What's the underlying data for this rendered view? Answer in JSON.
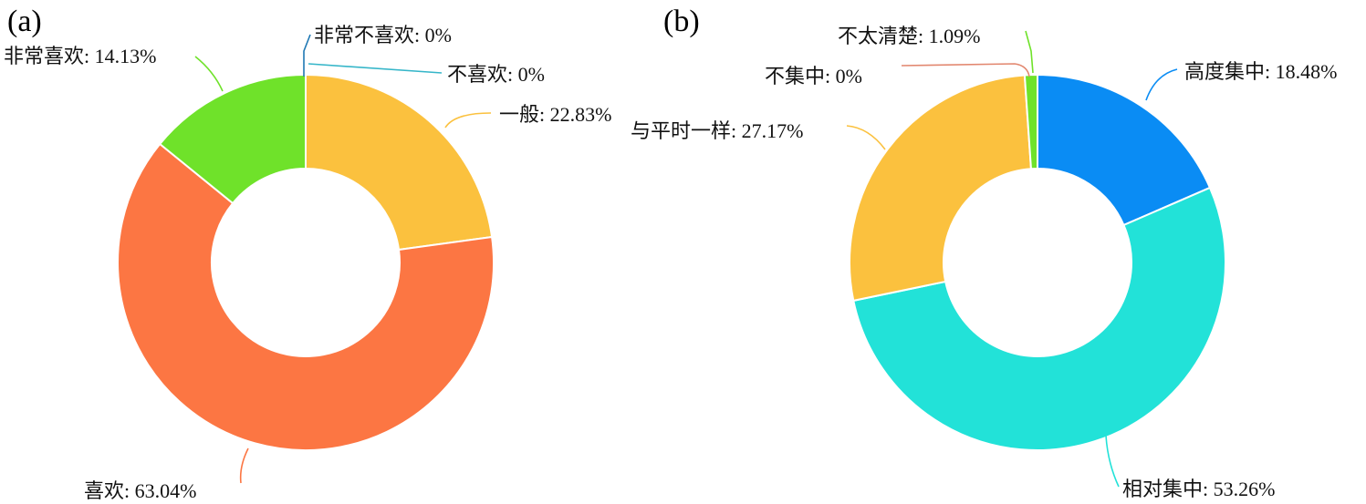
{
  "chart_data": [
    {
      "type": "pie",
      "variant": "donut",
      "panel": "(a)",
      "slices": [
        {
          "label": "一般",
          "value": 22.83,
          "text": "一般: 22.83%",
          "color": "#FBC13E"
        },
        {
          "label": "喜欢",
          "value": 63.04,
          "text": "喜欢: 63.04%",
          "color": "#FC7643"
        },
        {
          "label": "非常喜欢",
          "value": 14.13,
          "text": "非常喜欢: 14.13%",
          "color": "#6FE22A"
        },
        {
          "label": "非常不喜欢",
          "value": 0,
          "text": "非常不喜欢: 0%",
          "color": "#1F78B4"
        },
        {
          "label": "不喜欢",
          "value": 0,
          "text": "不喜欢: 0%",
          "color": "#36B6C9"
        }
      ]
    },
    {
      "type": "pie",
      "variant": "donut",
      "panel": "(b)",
      "slices": [
        {
          "label": "高度集中",
          "value": 18.48,
          "text": "高度集中: 18.48%",
          "color": "#0A8CF4"
        },
        {
          "label": "相对集中",
          "value": 53.26,
          "text": "相对集中: 53.26%",
          "color": "#22E2D8"
        },
        {
          "label": "与平时一样",
          "value": 27.17,
          "text": "与平时一样: 27.17%",
          "color": "#FBC13E"
        },
        {
          "label": "不集中",
          "value": 0,
          "text": "不集中: 0%",
          "color": "#E2876F"
        },
        {
          "label": "不太清楚",
          "value": 1.09,
          "text": "不太清楚: 1.09%",
          "color": "#6FE22A"
        }
      ]
    }
  ]
}
